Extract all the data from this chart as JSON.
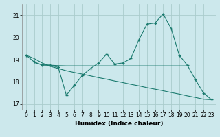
{
  "xlabel": "Humidex (Indice chaleur)",
  "bg_color": "#cce8ec",
  "grid_color": "#aacccc",
  "line_color": "#1a7a6e",
  "xlim": [
    -0.5,
    23.5
  ],
  "ylim": [
    16.75,
    21.5
  ],
  "yticks": [
    17,
    18,
    19,
    20,
    21
  ],
  "xticks": [
    0,
    1,
    2,
    3,
    4,
    5,
    6,
    7,
    8,
    9,
    10,
    11,
    12,
    13,
    14,
    15,
    16,
    17,
    18,
    19,
    20,
    21,
    22,
    23
  ],
  "main_x": [
    0,
    1,
    2,
    3,
    4,
    5,
    6,
    7,
    8,
    9,
    10,
    11,
    12,
    13,
    14,
    15,
    16,
    17,
    18,
    19,
    20,
    21,
    22,
    23
  ],
  "main_y": [
    19.2,
    18.9,
    18.75,
    18.75,
    18.65,
    17.4,
    17.85,
    18.3,
    18.6,
    18.85,
    19.25,
    18.8,
    18.85,
    19.05,
    19.9,
    20.6,
    20.65,
    21.05,
    20.4,
    19.2,
    18.75,
    18.1,
    17.5,
    17.2
  ],
  "diag_x": [
    0,
    1,
    2,
    3,
    4,
    5,
    6,
    7,
    8,
    9,
    10,
    11,
    12,
    13,
    14,
    15,
    16,
    17,
    18,
    19,
    20,
    21,
    22,
    23
  ],
  "diag_y": [
    19.2,
    19.05,
    18.85,
    18.7,
    18.6,
    18.5,
    18.42,
    18.35,
    18.27,
    18.19,
    18.12,
    18.04,
    17.97,
    17.89,
    17.82,
    17.74,
    17.67,
    17.6,
    17.52,
    17.45,
    17.37,
    17.3,
    17.22,
    17.2
  ],
  "flat_x": [
    1,
    2,
    3,
    4,
    5,
    6,
    7,
    8,
    9,
    10,
    11,
    12,
    13,
    14,
    15,
    16,
    17,
    18,
    19,
    20
  ],
  "flat_y": [
    18.87,
    18.77,
    18.75,
    18.73,
    18.72,
    18.72,
    18.72,
    18.72,
    18.72,
    18.72,
    18.72,
    18.72,
    18.72,
    18.72,
    18.72,
    18.72,
    18.72,
    18.72,
    18.72,
    18.72
  ]
}
